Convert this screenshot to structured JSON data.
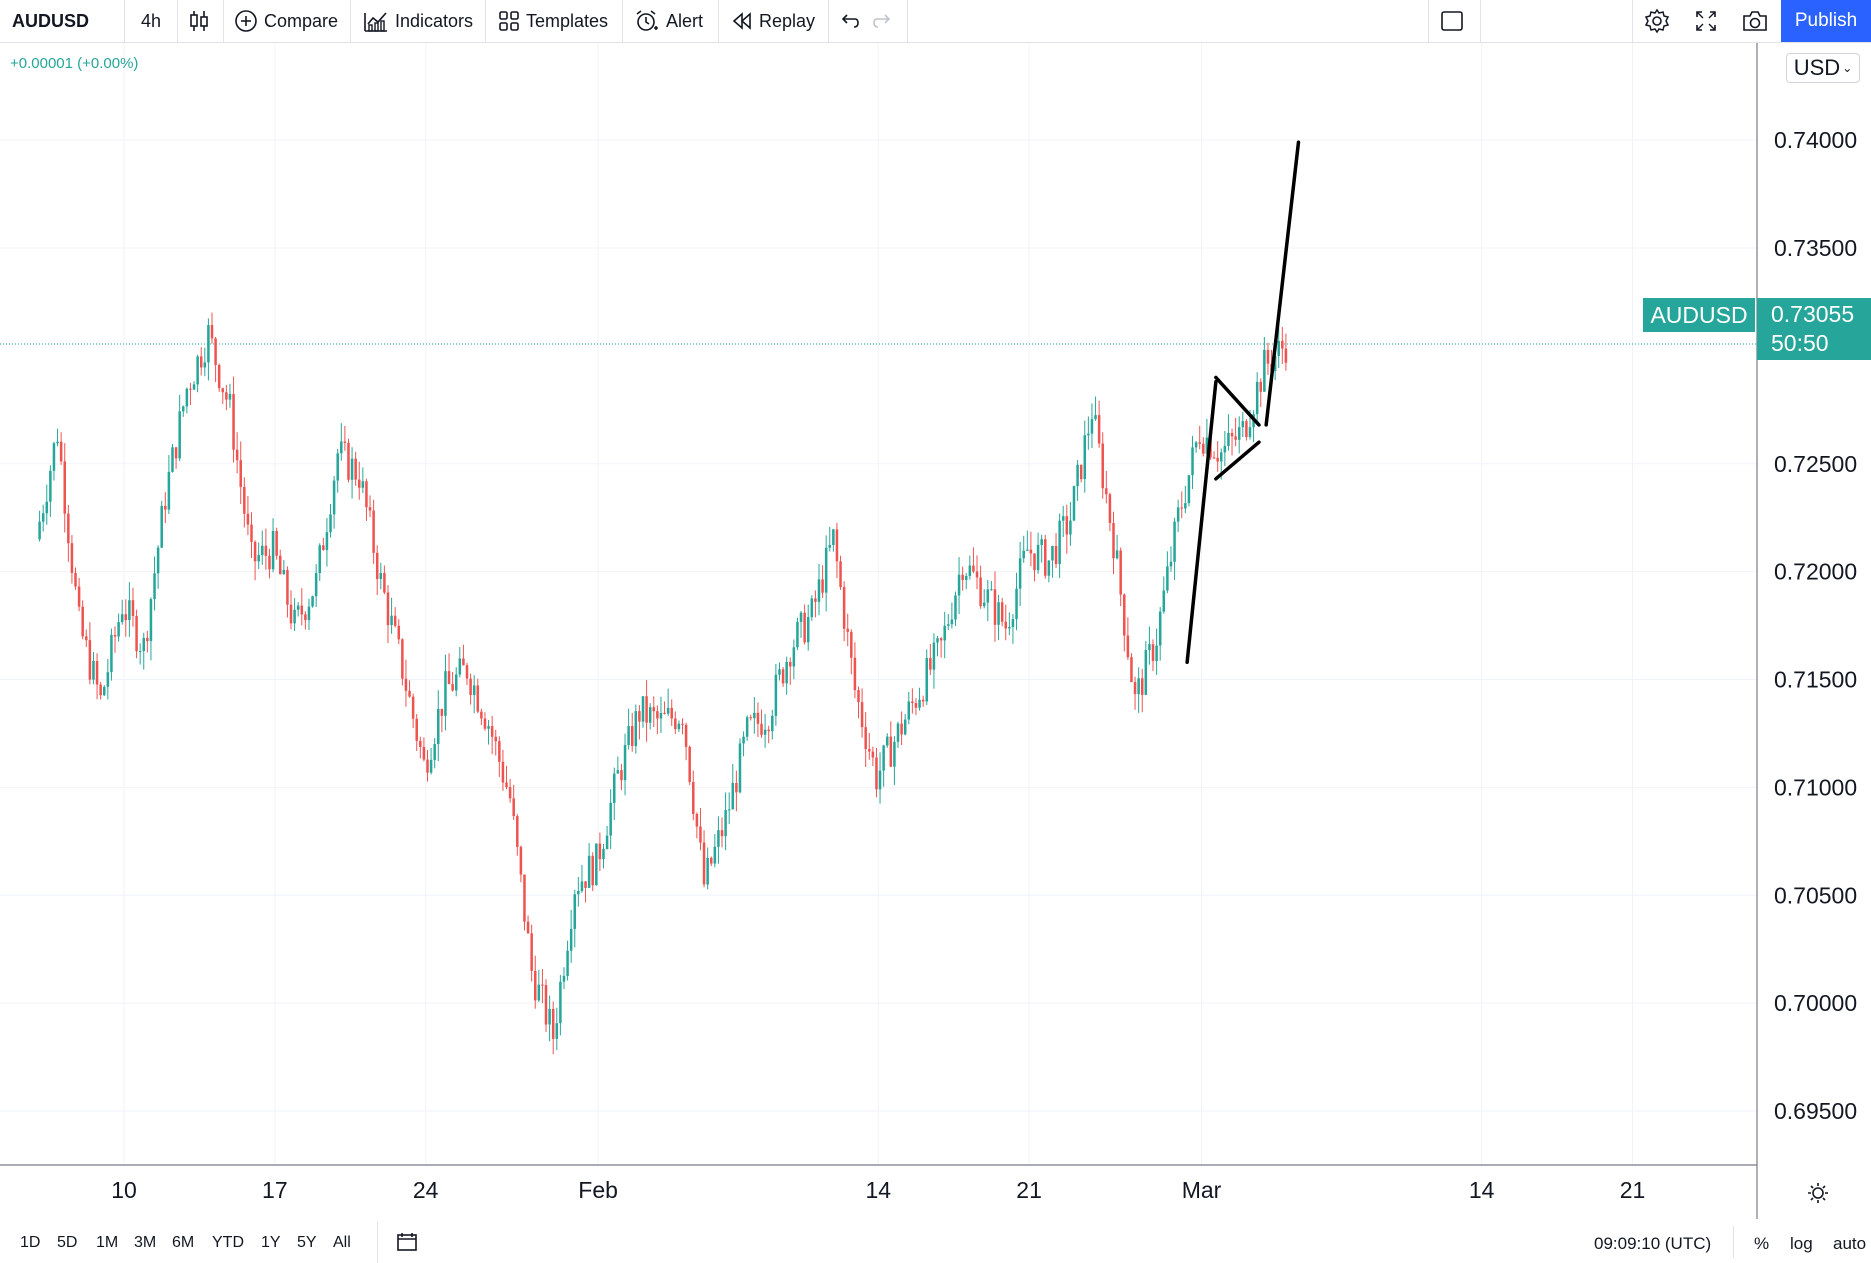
{
  "toolbar": {
    "symbol": "AUDUSD",
    "interval": "4h",
    "compare": "Compare",
    "indicators": "Indicators",
    "templates": "Templates",
    "alert": "Alert",
    "replay": "Replay",
    "publish": "Publish",
    "icons": [
      "candles-icon",
      "plus-circle-icon",
      "indicators-icon",
      "templates-icon",
      "alarm-clock-icon",
      "replay-icon",
      "undo-icon",
      "redo-icon",
      "layout-square-icon",
      "gear-icon",
      "fullscreen-icon",
      "camera-icon"
    ]
  },
  "legend": {
    "change": "+0.00001 (+0.00%)"
  },
  "currency": "USD",
  "price_label": {
    "symbol": "AUDUSD",
    "price": "0.73055",
    "countdown": "50:50"
  },
  "colors": {
    "up": "#26a69a",
    "down": "#ef5350",
    "accent": "#2962ff",
    "grid": "#f0f3fa"
  },
  "bottom": {
    "ranges": [
      "1D",
      "5D",
      "1M",
      "3M",
      "6M",
      "YTD",
      "1Y",
      "5Y",
      "All"
    ],
    "clock": "09:09:10 (UTC)",
    "percent": "%",
    "log": "log",
    "auto": "auto"
  },
  "chart_data": {
    "type": "candlestick",
    "symbol": "AUDUSD",
    "interval": "4h",
    "y_axis": {
      "ticks": [
        "0.74000",
        "0.73500",
        "0.72500",
        "0.72000",
        "0.71500",
        "0.71000",
        "0.70500",
        "0.70000",
        "0.69500"
      ],
      "range": [
        0.6925,
        0.7445
      ]
    },
    "x_axis": {
      "ticks": [
        "10",
        "17",
        "24",
        "Feb",
        "14",
        "21",
        "Mar",
        "14",
        "21"
      ]
    },
    "last_price": 0.73055,
    "grid": true,
    "series": [
      {
        "name": "AUDUSD",
        "close_path": [
          [
            "Jan 6",
            0.7215
          ],
          [
            "Jan 7",
            0.7265
          ],
          [
            "Jan 8",
            0.7175
          ],
          [
            "Jan 9",
            0.714
          ],
          [
            "Jan 10",
            0.7185
          ],
          [
            "Jan 11",
            0.7165
          ],
          [
            "Jan 12",
            0.7235
          ],
          [
            "Jan 13",
            0.7285
          ],
          [
            "Jan 14",
            0.731
          ],
          [
            "Jan 15",
            0.7275
          ],
          [
            "Jan 16",
            0.7205
          ],
          [
            "Jan 17",
            0.721
          ],
          [
            "Jan 18",
            0.7175
          ],
          [
            "Jan 19",
            0.7195
          ],
          [
            "Jan 20",
            0.7255
          ],
          [
            "Jan 21",
            0.7245
          ],
          [
            "Jan 22",
            0.7195
          ],
          [
            "Jan 23",
            0.7155
          ],
          [
            "Jan 24",
            0.711
          ],
          [
            "Jan 25",
            0.7145
          ],
          [
            "Jan 26",
            0.7155
          ],
          [
            "Jan 27",
            0.713
          ],
          [
            "Jan 28",
            0.7095
          ],
          [
            "Jan 29",
            0.7015
          ],
          [
            "Jan 30",
            0.6985
          ],
          [
            "Jan 31",
            0.7055
          ],
          [
            "Feb 1",
            0.7065
          ],
          [
            "Feb 2",
            0.7105
          ],
          [
            "Feb 3",
            0.7135
          ],
          [
            "Feb 4",
            0.713
          ],
          [
            "Feb 5",
            0.7135
          ],
          [
            "Feb 6",
            0.7055
          ],
          [
            "Feb 7",
            0.7085
          ],
          [
            "Feb 8",
            0.7125
          ],
          [
            "Feb 9",
            0.7135
          ],
          [
            "Feb 10",
            0.7165
          ],
          [
            "Feb 11",
            0.718
          ],
          [
            "Feb 12",
            0.7215
          ],
          [
            "Feb 13",
            0.7145
          ],
          [
            "Feb 14",
            0.7105
          ],
          [
            "Feb 15",
            0.7125
          ],
          [
            "Feb 16",
            0.7145
          ],
          [
            "Feb 17",
            0.7165
          ],
          [
            "Feb 18",
            0.7205
          ],
          [
            "Feb 19",
            0.719
          ],
          [
            "Feb 20",
            0.7175
          ],
          [
            "Feb 21",
            0.721
          ],
          [
            "Feb 22",
            0.7205
          ],
          [
            "Feb 23",
            0.7225
          ],
          [
            "Feb 24",
            0.7275
          ],
          [
            "Feb 25",
            0.7215
          ],
          [
            "Feb 26",
            0.714
          ],
          [
            "Feb 27",
            0.717
          ],
          [
            "Feb 28",
            0.7225
          ],
          [
            "Mar 1",
            0.7265
          ],
          [
            "Mar 2",
            0.7255
          ],
          [
            "Mar 3",
            0.7265
          ],
          [
            "Mar 4",
            0.7295
          ],
          [
            "Mar 5",
            0.73055
          ]
        ]
      }
    ],
    "annotations": [
      {
        "type": "trendline",
        "from": [
          "Feb 28 08:00",
          0.7158
        ],
        "to": [
          "Mar 1 16:00",
          0.7288
        ]
      },
      {
        "type": "trendline",
        "from": [
          "Mar 1 16:00",
          0.729
        ],
        "to": [
          "Mar 3 16:00",
          0.7268
        ]
      },
      {
        "type": "trendline",
        "from": [
          "Mar 1 16:00",
          0.7243
        ],
        "to": [
          "Mar 3 16:00",
          0.726
        ]
      },
      {
        "type": "trendline",
        "from": [
          "Mar 4 00:00",
          0.7268
        ],
        "to": [
          "Mar 5 12:00",
          0.7399
        ]
      }
    ]
  }
}
